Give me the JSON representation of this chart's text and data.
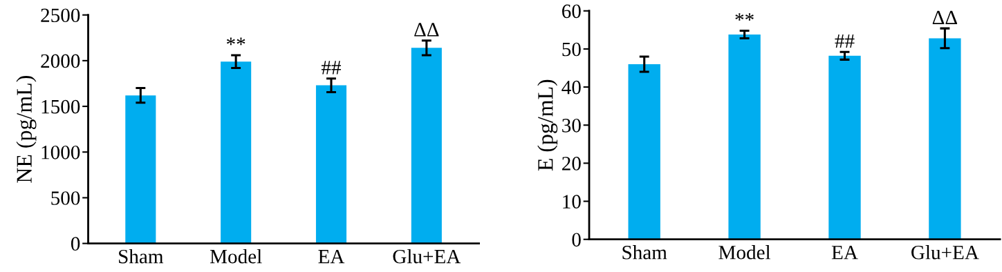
{
  "chart_data": [
    {
      "type": "bar",
      "categories": [
        "Sham",
        "Model",
        "EA",
        "Glu+EA"
      ],
      "ylabel": "NE (pg/mL)",
      "color": "#00adef",
      "values": [
        1620,
        1990,
        1730,
        2140
      ],
      "errors": [
        80,
        70,
        75,
        80
      ],
      "ylim": [
        0,
        2500
      ],
      "yticks": [
        0,
        500,
        1000,
        1500,
        2000,
        2500
      ],
      "grid": false,
      "annotations": [
        {
          "text": "**",
          "x": "Model",
          "y": 2060
        },
        {
          "text": "##",
          "x": "EA",
          "y": 1805
        },
        {
          "text": "ΔΔ",
          "x": "Glu+EA",
          "y": 2220
        }
      ]
    },
    {
      "type": "bar",
      "categories": [
        "Sham",
        "Model",
        "EA",
        "Glu+EA"
      ],
      "ylabel": "E (pg/mL)",
      "color": "#00adef",
      "values": [
        46,
        53.8,
        48.2,
        52.8
      ],
      "errors": [
        2,
        1,
        1,
        2.6
      ],
      "ylim": [
        0,
        60
      ],
      "yticks": [
        0,
        10,
        20,
        30,
        40,
        50,
        60
      ],
      "grid": false,
      "annotations": [
        {
          "text": "**",
          "x": "Model",
          "y": 54.8
        },
        {
          "text": "##",
          "x": "EA",
          "y": 49.2
        },
        {
          "text": "ΔΔ",
          "x": "Glu+EA",
          "y": 55.4
        }
      ]
    }
  ]
}
